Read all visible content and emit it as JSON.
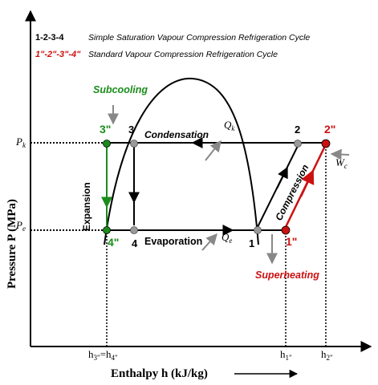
{
  "legend": {
    "cycle1_points": "1-2-3-4",
    "cycle1_desc": "Simple Saturation Vapour Compression Refrigeration Cycle",
    "cycle2_points": "1\"-2\"-3\"-4\"",
    "cycle2_desc": "Standard Vapour Compression Refrigeration Cycle"
  },
  "axes": {
    "y_label": "Pressure  P  (MPa)",
    "x_label": "Enthalpy  h (kJ/kg)",
    "pk_main": "P",
    "pk_sub": "k",
    "pe_main": "P",
    "pe_sub": "e",
    "h3_main": "h",
    "h3_sub1": "3\"",
    "h3_eq": "=h",
    "h3_sub2": "4\"",
    "h1_main": "h",
    "h1_sub": "1\"",
    "h2_main": "h",
    "h2_sub": "2\""
  },
  "process_labels": {
    "subcooling": "Subcooling",
    "condensation": "Condensation",
    "expansion": "Expansion",
    "evaporation": "Evaporation",
    "compression": "Compression",
    "superheating": "Superheating",
    "qk_main": "Q",
    "qk_sub": "k",
    "qe_main": "Q",
    "qe_sub": "e",
    "wc_main": "W",
    "wc_sub": "c"
  },
  "points": {
    "p1": "1",
    "p2": "2",
    "p3": "3",
    "p4": "4",
    "p1pp": "1\"",
    "p2pp": "2\"",
    "p3pp": "3\"",
    "p4pp": "4\""
  },
  "colors": {
    "black": "#000000",
    "green": "#1a8c1a",
    "red": "#cc1111",
    "gray": "#888888"
  }
}
